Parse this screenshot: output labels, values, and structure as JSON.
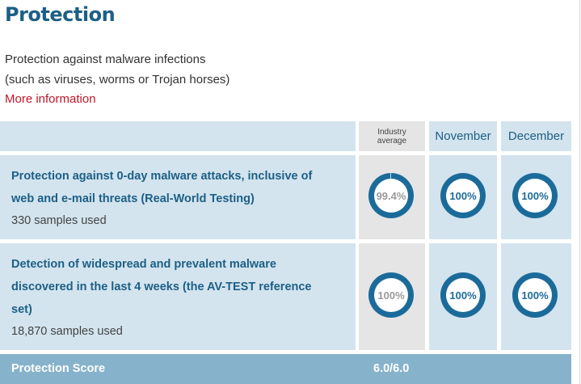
{
  "section": {
    "title": "Protection",
    "desc_line1": "Protection against malware infections",
    "desc_line2": "(such as viruses, worms or Trojan horses)",
    "more_link": "More information"
  },
  "table": {
    "col_avg_label": "Industry average",
    "col_nov": "November",
    "col_dec": "December",
    "rows": [
      {
        "title_line1": "Protection against 0-day malware attacks, inclusive of",
        "title_line2": "web and e-mail threats (Real-World Testing)",
        "samples": "330 samples used",
        "avg": "99.4%",
        "avg_value": 99.4,
        "nov": "100%",
        "nov_value": 100,
        "dec": "100%",
        "dec_value": 100
      },
      {
        "title_line1": "Detection of widespread and prevalent malware",
        "title_line2": "discovered in the last 4 weeks (the AV-TEST reference",
        "title_line3": "set)",
        "samples": "18,870 samples used",
        "avg": "100%",
        "avg_value": 100,
        "nov": "100%",
        "nov_value": 100,
        "dec": "100%",
        "dec_value": 100
      }
    ],
    "score_label": "Protection Score",
    "score_value": "6.0/6.0"
  },
  "colors": {
    "ring_fill": "#1b6b9a",
    "ring_track": "#c9dbe6",
    "title": "#1c5f86",
    "link": "#c0172a"
  }
}
